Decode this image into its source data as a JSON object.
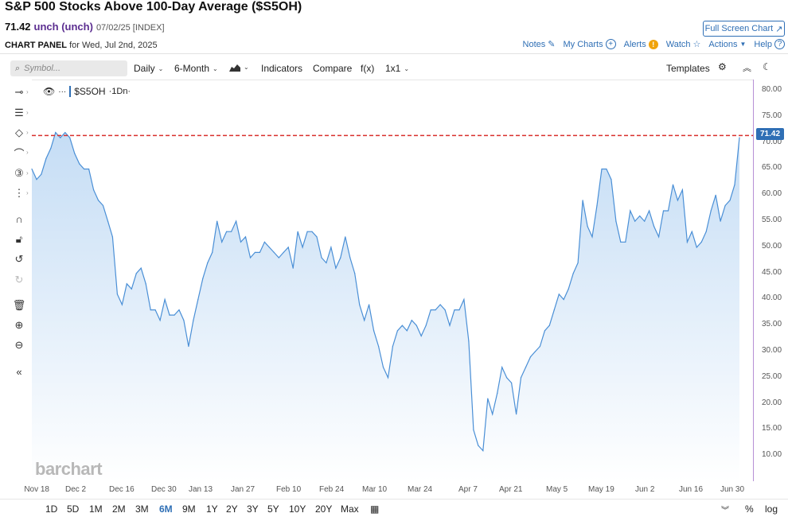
{
  "header": {
    "title": "S&P 500 Stocks Above 100-Day Average ($S5OH)",
    "price": "71.42",
    "change": "unch (unch)",
    "meta": "07/02/25 [INDEX]",
    "fullscreen_label": "Full Screen Chart"
  },
  "panel": {
    "label": "CHART PANEL",
    "date": "for Wed, Jul 2nd, 2025",
    "links": {
      "notes": "Notes",
      "my_charts": "My Charts",
      "alerts": "Alerts",
      "watch": "Watch",
      "actions": "Actions",
      "help": "Help"
    }
  },
  "toolbar": {
    "search_placeholder": "Symbol...",
    "interval": "Daily",
    "period": "6-Month",
    "indicators": "Indicators",
    "compare": "Compare",
    "fx": "f(x)",
    "layout": "1x1",
    "templates": "Templates"
  },
  "legend": {
    "symbol": "$S5OH",
    "interval": "·1Dn·"
  },
  "last_price_tag": "71.42",
  "watermark": "barchart",
  "ranges": [
    "1D",
    "5D",
    "1M",
    "2M",
    "3M",
    "6M",
    "9M",
    "1Y",
    "2Y",
    "3Y",
    "5Y",
    "10Y",
    "20Y",
    "Max"
  ],
  "active_range": "6M",
  "bottom_right": {
    "percent": "%",
    "log": "log"
  },
  "colors": {
    "line": "#4a8fd6",
    "fill_top": "#c5ddf5",
    "ref_line": "#d9302c",
    "accent": "#2f6fb5"
  },
  "chart_data": {
    "type": "area",
    "ylim": [
      5,
      82
    ],
    "yticks": [
      "80.00",
      "75.00",
      "70.00",
      "65.00",
      "60.00",
      "55.00",
      "50.00",
      "45.00",
      "40.00",
      "35.00",
      "30.00",
      "25.00",
      "20.00",
      "15.00",
      "10.00"
    ],
    "xticks": [
      "Nov 18",
      "Dec 2",
      "Dec 16",
      "Dec 30",
      "Jan 13",
      "Jan 27",
      "Feb 10",
      "Feb 24",
      "Mar 10",
      "Mar 24",
      "Apr 7",
      "Apr 21",
      "May 5",
      "May 19",
      "Jun 2",
      "Jun 16",
      "Jun 30"
    ],
    "reference_line": 71.42,
    "values": [
      65,
      63,
      64,
      67,
      69,
      72,
      71,
      72,
      71,
      68,
      66,
      65,
      65,
      61,
      59,
      58,
      55,
      52,
      41,
      39,
      43,
      42,
      45,
      46,
      43,
      38,
      38,
      36,
      40,
      37,
      37,
      38,
      36,
      31,
      36,
      40,
      44,
      47,
      49,
      55,
      51,
      53,
      53,
      55,
      51,
      52,
      48,
      49,
      49,
      51,
      50,
      49,
      48,
      49,
      50,
      46,
      53,
      50,
      53,
      53,
      52,
      48,
      47,
      50,
      46,
      48,
      52,
      48,
      45,
      39,
      36,
      39,
      34,
      31,
      27,
      25,
      31,
      34,
      35,
      34,
      36,
      35,
      33,
      35,
      38,
      38,
      39,
      38,
      35,
      38,
      38,
      40,
      32,
      15,
      12,
      11,
      21,
      18,
      22,
      27,
      25,
      24,
      18,
      25,
      27,
      29,
      30,
      31,
      34,
      35,
      38,
      41,
      40,
      42,
      45,
      47,
      59,
      54,
      52,
      58,
      65,
      65,
      63,
      55,
      51,
      51,
      57,
      55,
      56,
      55,
      57,
      54,
      52,
      57,
      57,
      62,
      59,
      61,
      51,
      53,
      50,
      51,
      53,
      57,
      60,
      55,
      58,
      59,
      62,
      71
    ]
  }
}
